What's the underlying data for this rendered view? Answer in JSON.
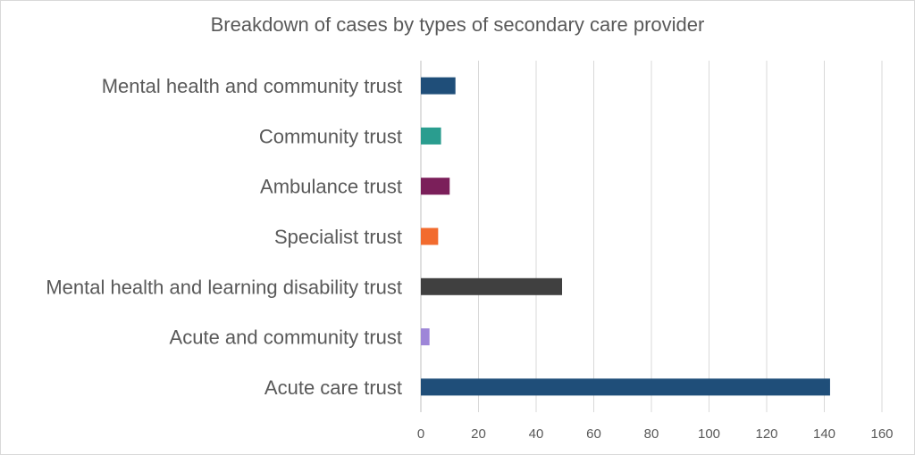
{
  "chart_data": {
    "type": "bar",
    "orientation": "horizontal",
    "title": "Breakdown of cases by types of secondary care provider",
    "xlabel": "",
    "ylabel": "",
    "xlim": [
      0,
      160
    ],
    "x_ticks": [
      "0",
      "20",
      "40",
      "60",
      "80",
      "100",
      "120",
      "140",
      "160"
    ],
    "grid": true,
    "legend": "none",
    "categories": [
      "Mental health and community trust",
      "Community trust",
      "Ambulance trust",
      "Specialist trust",
      "Mental health and learning disability trust",
      "Acute and community trust",
      "Acute care trust"
    ],
    "values": [
      12,
      7,
      10,
      6,
      49,
      3,
      142
    ],
    "colors": [
      "#1f4e79",
      "#2a9d8f",
      "#7b1f5a",
      "#f26b2e",
      "#404040",
      "#9e86d8",
      "#1f4e79"
    ]
  }
}
